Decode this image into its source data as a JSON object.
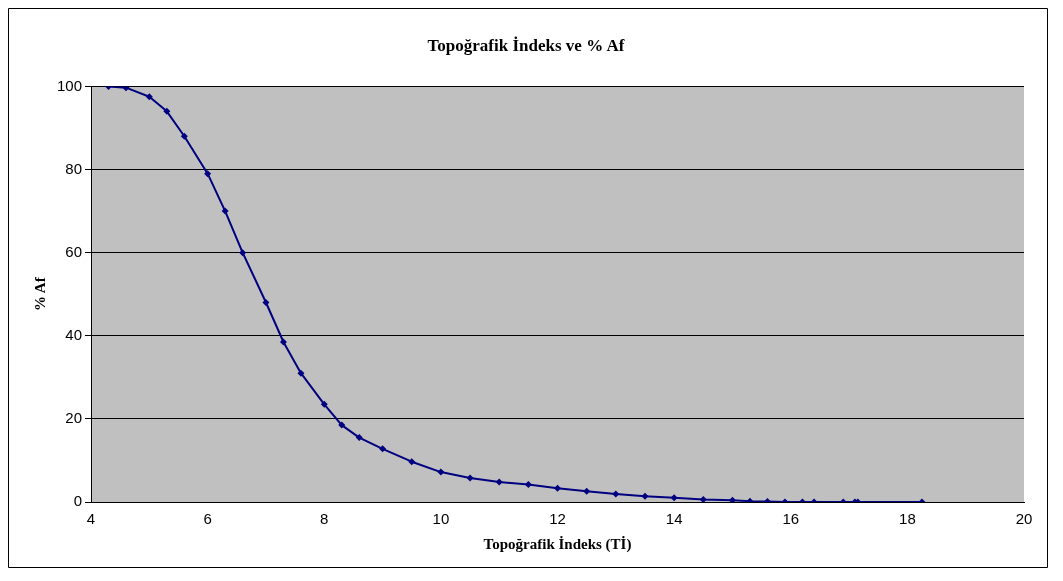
{
  "chart_data": {
    "type": "line",
    "title": "Topoğrafik İndeks ve % Af",
    "xlabel": "Topoğrafik İndeks (Tİ)",
    "ylabel": "% Af",
    "x": [
      4.3,
      4.6,
      5.0,
      5.3,
      5.6,
      6.0,
      6.3,
      6.6,
      7.0,
      7.3,
      7.6,
      8.0,
      8.3,
      8.6,
      9.0,
      9.5,
      10,
      10.5,
      11,
      11.5,
      12,
      12.5,
      13,
      13.5,
      14,
      14.5,
      15,
      15.3,
      15.6,
      15.9,
      16.2,
      16.4,
      16.9,
      17.1,
      17.15,
      18.25
    ],
    "series": [
      {
        "color": "#000080",
        "values": [
          100,
          99.7,
          97.5,
          94,
          88,
          79,
          70,
          60,
          48,
          38.5,
          31,
          23.5,
          18.5,
          15.5,
          12.8,
          9.7,
          7.2,
          5.8,
          4.8,
          4.2,
          3.3,
          2.6,
          1.9,
          1.4,
          1.0,
          0.6,
          0.4,
          0.2,
          0.1,
          0,
          0,
          0,
          0,
          0,
          0,
          0
        ]
      }
    ],
    "xlim": [
      4,
      20
    ],
    "xticks": [
      4,
      6,
      8,
      10,
      12,
      14,
      16,
      18,
      20
    ],
    "ylim": [
      0,
      100
    ],
    "yticks": [
      0,
      20,
      40,
      60,
      80,
      100
    ],
    "grid": "y",
    "legend": false,
    "marker": "diamond",
    "line_style": "solid"
  }
}
